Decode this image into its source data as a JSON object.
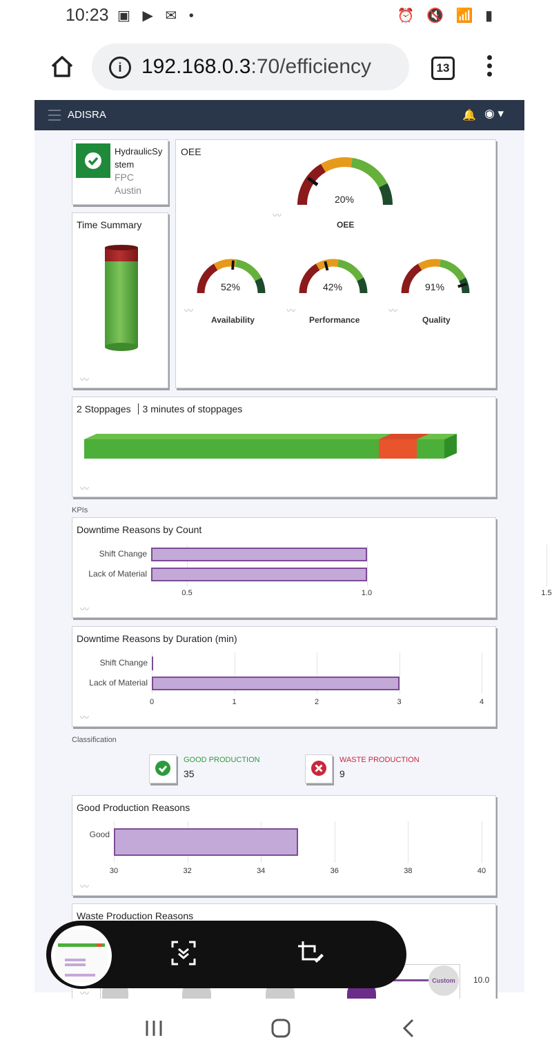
{
  "status_bar": {
    "time": "10:23",
    "left_icons": "image-icon youtube-icon gmail-icon dot",
    "right_icons": "alarm-icon mute-icon wifi-icon signal-icon battery-icon"
  },
  "browser": {
    "url_host": "192.168.0.3",
    "url_path": ":70/efficiency",
    "tab_count": "13"
  },
  "app": {
    "title": "ADISRA"
  },
  "asset": {
    "name_line1": "HydraulicSy",
    "name_line2": "stem",
    "line3": "FPC",
    "line4": "Austin"
  },
  "time_summary": {
    "title": "Time Summary"
  },
  "oee": {
    "title": "OEE",
    "main_value": "20%",
    "main_fraction": 0.2,
    "main_label": "OEE",
    "gauges": [
      {
        "label": "Availability",
        "value": "52%",
        "fraction": 0.52
      },
      {
        "label": "Performance",
        "value": "42%",
        "fraction": 0.42
      },
      {
        "label": "Quality",
        "value": "91%",
        "fraction": 0.91
      }
    ]
  },
  "stoppages": {
    "count_text": "2 Stoppages",
    "minutes_text": "3 minutes of stoppages"
  },
  "kpis_label": "KPIs",
  "classification_label": "Classification",
  "good_production": {
    "label": "GOOD PRODUCTION",
    "value": "35"
  },
  "waste_production": {
    "label": "WASTE PRODUCTION",
    "value": "9"
  },
  "waste_reasons": {
    "title": "Waste Production Reasons",
    "custom_label": "Custom",
    "tick": "10.0"
  },
  "chart_data": [
    {
      "type": "bar",
      "orientation": "horizontal",
      "title": "Downtime Reasons by Count",
      "categories": [
        "Shift Change",
        "Lack of Material"
      ],
      "values": [
        1.0,
        1.0
      ],
      "xticks": [
        "0.5",
        "1.0",
        "1.5"
      ],
      "xlim": [
        0.4,
        1.5
      ]
    },
    {
      "type": "bar",
      "orientation": "horizontal",
      "title": "Downtime Reasons by Duration (min)",
      "categories": [
        "Shift Change",
        "Lack of Material"
      ],
      "values": [
        0,
        3
      ],
      "xticks": [
        "0",
        "1",
        "2",
        "3",
        "4"
      ],
      "xlim": [
        0,
        4
      ]
    },
    {
      "type": "bar",
      "orientation": "horizontal",
      "title": "Good Production Reasons",
      "categories": [
        "Good"
      ],
      "values": [
        35
      ],
      "xticks": [
        "30",
        "32",
        "34",
        "36",
        "38",
        "40"
      ],
      "xlim": [
        30,
        40
      ]
    }
  ],
  "colors": {
    "header": "#2a3649",
    "good": "#3aa13a",
    "bad": "#e0542a",
    "purple_fill": "#c3a9d8",
    "purple_stroke": "#7d4a95"
  }
}
